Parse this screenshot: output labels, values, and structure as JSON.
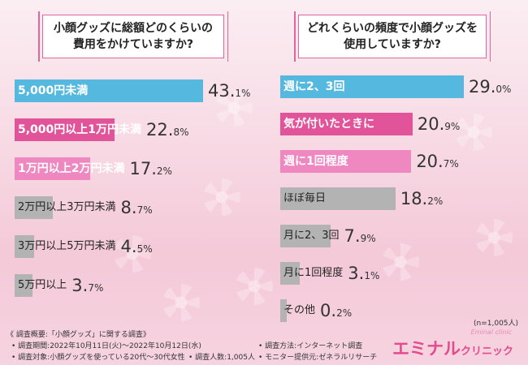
{
  "colors": {
    "blue": "#55b8de",
    "pink": "#e2549a",
    "light_pink": "#ef87c0",
    "gray": "#b3b3b3"
  },
  "chart_data": [
    {
      "type": "bar",
      "title": "小顔グッズに総額どのくらいの費用をかけていますか?",
      "title_lines": [
        "小顔グッズに総額どのくらいの",
        "費用をかけていますか?"
      ],
      "categories": [
        "5,000円未満",
        "5,000円以上1万円未満",
        "1万円以上2万円未満",
        "2万円以上3万円未満",
        "3万円以上5万円未満",
        "5万円以上"
      ],
      "values": [
        43.1,
        22.8,
        17.2,
        8.7,
        4.5,
        3.7
      ],
      "value_labels": [
        [
          "43.",
          "1%"
        ],
        [
          "22.",
          "8%"
        ],
        [
          "17.",
          "2%"
        ],
        [
          "8.",
          "7%"
        ],
        [
          "4.",
          "5%"
        ],
        [
          "3.",
          "7%"
        ]
      ],
      "tiers": [
        "blue",
        "pink",
        "light_pink",
        "gray",
        "gray",
        "gray"
      ],
      "xlim": [
        0,
        43.1
      ]
    },
    {
      "type": "bar",
      "title": "どれくらいの頻度で小顔グッズを使用していますか?",
      "title_lines": [
        "どれくらいの頻度で小顔グッズを",
        "使用していますか?"
      ],
      "categories": [
        "週に2、3回",
        "気が付いたときに",
        "週に1回程度",
        "ほぼ毎日",
        "月に2、3回",
        "月に1回程度",
        "その他"
      ],
      "values": [
        29.0,
        20.9,
        20.7,
        18.2,
        7.9,
        3.1,
        0.2
      ],
      "value_labels": [
        [
          "29.",
          "0%"
        ],
        [
          "20.",
          "9%"
        ],
        [
          "20.",
          "7%"
        ],
        [
          "18.",
          "2%"
        ],
        [
          "7.",
          "9%"
        ],
        [
          "3.",
          "1%"
        ],
        [
          "0.",
          "2%"
        ]
      ],
      "tiers": [
        "blue",
        "pink",
        "light_pink",
        "gray",
        "gray",
        "gray",
        "gray"
      ],
      "xlim": [
        0,
        29.0
      ]
    }
  ],
  "sample_size": "(n=1,005人)",
  "survey": {
    "overview": "《 調査概要:「小顔グッズ」に関する調査》",
    "period": "• 調査期間:2022年10月11日(火)〜2022年10月12日(水)",
    "target": "• 調査対象:小顔グッズを使っている20代〜30代女性",
    "count": "• 調査人数:1,005人",
    "method": "• 調査方法:インターネット調査",
    "provider": "• モニター提供元:ゼネラルリサーチ"
  },
  "logo": {
    "small": "Eminal clinic",
    "main": "エミナル",
    "sub": "クリニック"
  }
}
